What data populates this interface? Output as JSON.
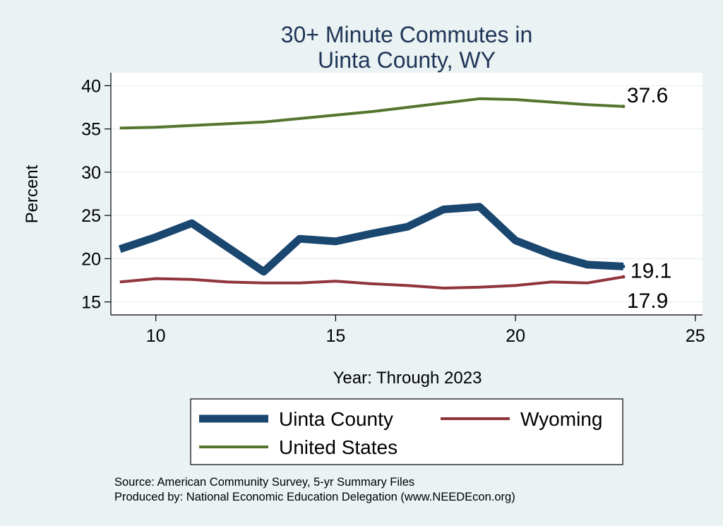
{
  "chart_data": {
    "type": "line",
    "title": [
      "30+ Minute Commutes in",
      "Uinta County, WY"
    ],
    "xlabel": "Year: Through 2023",
    "ylabel": "Percent",
    "xlim": [
      8.75,
      25.2
    ],
    "ylim": [
      13.5,
      41.5
    ],
    "xticks": [
      10,
      15,
      20,
      25
    ],
    "yticks": [
      15,
      20,
      25,
      30,
      35,
      40
    ],
    "grid": true,
    "legend_position": "bottom",
    "series": [
      {
        "name": "Uinta County",
        "color": "#1a476f",
        "x": [
          9,
          10,
          11,
          12,
          13,
          14,
          15,
          16,
          17,
          18,
          19,
          20,
          21,
          22,
          23
        ],
        "values": [
          21.1,
          22.5,
          24.1,
          21.3,
          18.5,
          22.3,
          22.0,
          22.9,
          23.7,
          25.7,
          26.0,
          22.1,
          20.5,
          19.3,
          19.1
        ],
        "end_label": "19.1"
      },
      {
        "name": "Wyoming",
        "color": "#90353b",
        "x": [
          9,
          10,
          11,
          12,
          13,
          14,
          15,
          16,
          17,
          18,
          19,
          20,
          21,
          22,
          23
        ],
        "values": [
          17.3,
          17.7,
          17.6,
          17.3,
          17.2,
          17.2,
          17.4,
          17.1,
          16.9,
          16.6,
          16.7,
          16.9,
          17.3,
          17.2,
          17.9
        ],
        "end_label": "17.9"
      },
      {
        "name": "United States",
        "color": "#55752f",
        "x": [
          9,
          10,
          11,
          12,
          13,
          14,
          15,
          16,
          17,
          18,
          19,
          20,
          21,
          22,
          23
        ],
        "values": [
          35.1,
          35.2,
          35.4,
          35.6,
          35.8,
          36.2,
          36.6,
          37.0,
          37.5,
          38.0,
          38.5,
          38.4,
          38.1,
          37.8,
          37.6
        ],
        "end_label": "37.6"
      }
    ]
  },
  "footer": {
    "source": "Source: American Community Survey, 5-yr Summary Files",
    "produced_by": "Produced by: National Economic Education Delegation (www.NEEDEcon.org)"
  }
}
